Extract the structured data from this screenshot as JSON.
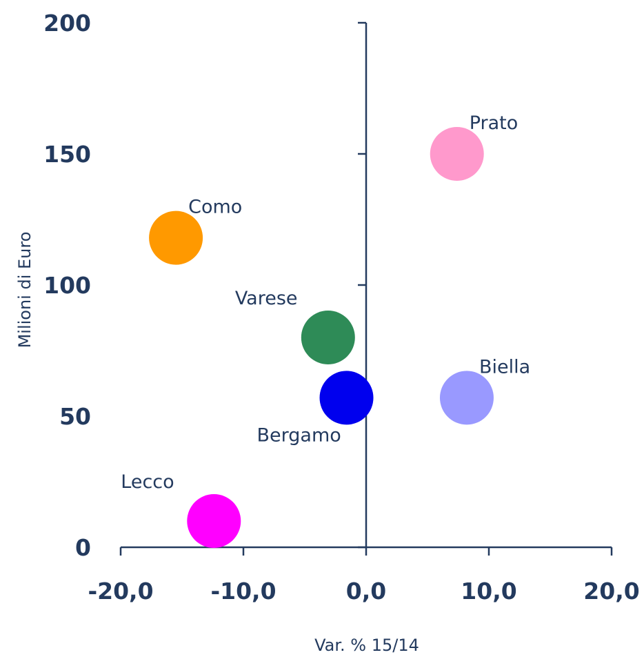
{
  "chart_data": {
    "type": "scatter",
    "title": "",
    "xlabel": "Var. % 15/14",
    "ylabel": "Milioni di Euro",
    "xlim": [
      -20,
      20
    ],
    "ylim": [
      0,
      200
    ],
    "x_ticks": [
      "-20,0",
      "-10,0",
      "0,0",
      "10,0",
      "20,0"
    ],
    "y_ticks": [
      "0",
      "50",
      "100",
      "150",
      "200"
    ],
    "grid": false,
    "points": [
      {
        "label": "Prato",
        "x": 7.4,
        "y": 150,
        "color": "#ff99cc",
        "label_pos": "above-right"
      },
      {
        "label": "Como",
        "x": -15.5,
        "y": 118,
        "color": "#ff9900",
        "label_pos": "above-right"
      },
      {
        "label": "Varese",
        "x": -3.1,
        "y": 80,
        "color": "#2e8b57",
        "label_pos": "above-left"
      },
      {
        "label": "Biella",
        "x": 8.2,
        "y": 57,
        "color": "#9999ff",
        "label_pos": "above-right"
      },
      {
        "label": "Bergamo",
        "x": -1.6,
        "y": 57,
        "color": "#0000ee",
        "label_pos": "below-left"
      },
      {
        "label": "Lecco",
        "x": -12.4,
        "y": 10,
        "color": "#ff00ff",
        "label_pos": "above-left"
      }
    ]
  }
}
